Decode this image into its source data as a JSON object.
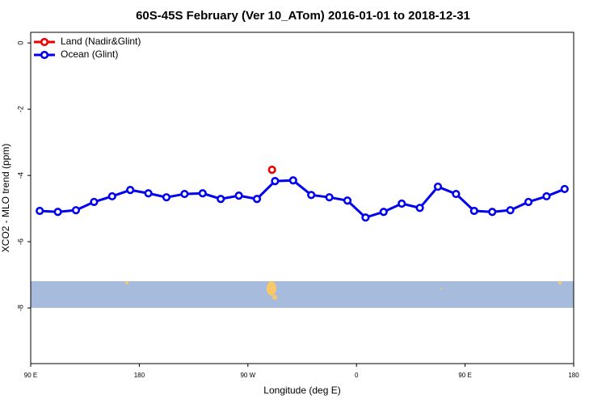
{
  "chart_data": {
    "type": "line",
    "title": "60S-45S February (Ver 10_ATom)   2016-01-01 to 2018-12-31",
    "x_label": "Longitude (deg E)",
    "y_label": "XCO2 - MLO trend (ppm)",
    "xlim": [
      90,
      540
    ],
    "xticks": [
      {
        "value": 90,
        "label": "90 E"
      },
      {
        "value": 180,
        "label": "180"
      },
      {
        "value": 270,
        "label": "90 W"
      },
      {
        "value": 360,
        "label": "0"
      },
      {
        "value": 450,
        "label": "90 E"
      },
      {
        "value": 540,
        "label": "180"
      }
    ],
    "ylim": [
      -9.68,
      0.32
    ],
    "yticks": [
      0,
      -2,
      -4,
      -6,
      -8
    ],
    "legend": "top-left",
    "series": [
      {
        "name": "Land (Nadir&Glint)",
        "color": "#ee0000",
        "x": [
          290
        ],
        "values": [
          -3.83
        ]
      },
      {
        "name": "Ocean (Glint)",
        "color": "#0000ee",
        "x": [
          97.5,
          112.5,
          127.5,
          142.5,
          157.5,
          172.5,
          187.5,
          202.5,
          217.5,
          232.5,
          247.5,
          262.5,
          277.5,
          292.5,
          307.5,
          322.5,
          337.5,
          352.5,
          367.5,
          382.5,
          397.5,
          412.5,
          427.5,
          442.5,
          457.5,
          472.5,
          487.5,
          502.5,
          517.5,
          532.5
        ],
        "values": [
          -5.07,
          -5.1,
          -5.05,
          -4.8,
          -4.63,
          -4.44,
          -4.54,
          -4.66,
          -4.56,
          -4.54,
          -4.71,
          -4.61,
          -4.71,
          -4.17,
          -4.15,
          -4.59,
          -4.66,
          -4.76,
          -5.27,
          -5.1,
          -4.85,
          -4.98,
          -4.34,
          -4.56,
          -5.07,
          -5.1,
          -5.05,
          -4.8,
          -4.63,
          -4.41
        ]
      }
    ]
  }
}
